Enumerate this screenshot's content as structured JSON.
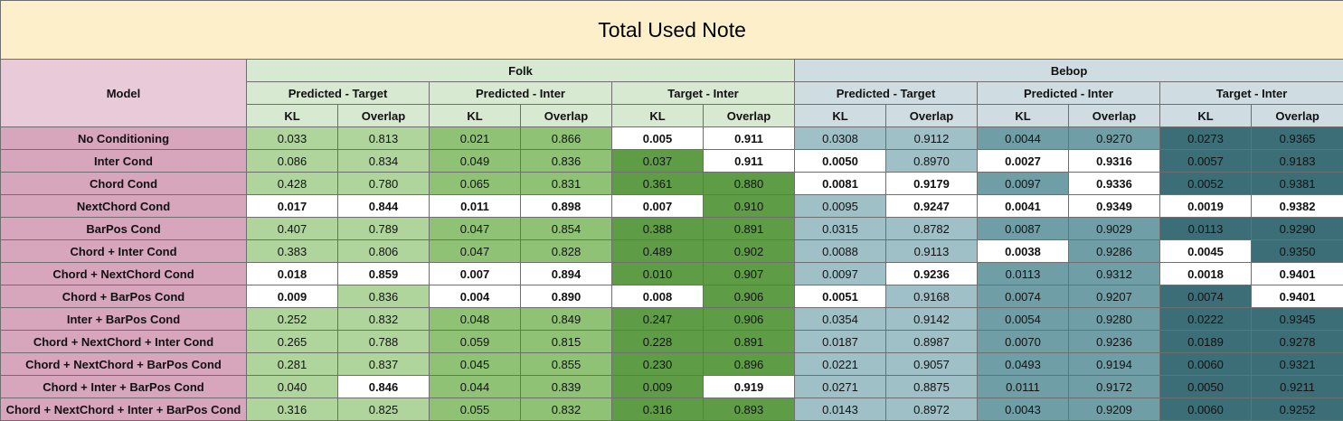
{
  "title": "Total Used Note",
  "model_header": "Model",
  "groups": [
    {
      "name": "Folk",
      "pairs": [
        "Predicted - Target",
        "Predicted - Inter",
        "Target - Inter"
      ]
    },
    {
      "name": "Bebop",
      "pairs": [
        "Predicted - Target",
        "Predicted - Inter",
        "Target - Inter"
      ]
    }
  ],
  "metrics": [
    "KL",
    "Overlap"
  ],
  "colors": {
    "title_bg": "#fdefc9",
    "model_bg": "#d7a6bd",
    "folk_header_bg": "#d8e9d1",
    "bebop_header_bg": "#cfdde2",
    "folk_shades": [
      "#afd59c",
      "#8fc275",
      "#5e9d46"
    ],
    "bebop_shades": [
      "#a0c0c7",
      "#6f9ea6",
      "#3c6e78"
    ],
    "highlight": "#ffffff"
  },
  "rows": [
    {
      "model": "No Conditioning",
      "values": [
        "0.033",
        "0.813",
        "0.021",
        "0.866",
        "0.005",
        "0.911",
        "0.0308",
        "0.9112",
        "0.0044",
        "0.9270",
        "0.0273",
        "0.9365"
      ],
      "bold": [
        4,
        5
      ]
    },
    {
      "model": "Inter Cond",
      "values": [
        "0.086",
        "0.834",
        "0.049",
        "0.836",
        "0.037",
        "0.911",
        "0.0050",
        "0.8970",
        "0.0027",
        "0.9316",
        "0.0057",
        "0.9183"
      ],
      "bold": [
        5,
        6,
        8,
        9
      ]
    },
    {
      "model": "Chord Cond",
      "values": [
        "0.428",
        "0.780",
        "0.065",
        "0.831",
        "0.361",
        "0.880",
        "0.0081",
        "0.9179",
        "0.0097",
        "0.9336",
        "0.0052",
        "0.9381"
      ],
      "bold": [
        6,
        7,
        9
      ]
    },
    {
      "model": "NextChord Cond",
      "values": [
        "0.017",
        "0.844",
        "0.011",
        "0.898",
        "0.007",
        "0.910",
        "0.0095",
        "0.9247",
        "0.0041",
        "0.9349",
        "0.0019",
        "0.9382"
      ],
      "bold": [
        0,
        1,
        2,
        3,
        4,
        7,
        8,
        9,
        10,
        11
      ]
    },
    {
      "model": "BarPos Cond",
      "values": [
        "0.407",
        "0.789",
        "0.047",
        "0.854",
        "0.388",
        "0.891",
        "0.0315",
        "0.8782",
        "0.0087",
        "0.9029",
        "0.0113",
        "0.9290"
      ],
      "bold": []
    },
    {
      "model": "Chord + Inter Cond",
      "values": [
        "0.383",
        "0.806",
        "0.047",
        "0.828",
        "0.489",
        "0.902",
        "0.0088",
        "0.9113",
        "0.0038",
        "0.9286",
        "0.0045",
        "0.9350"
      ],
      "bold": [
        8,
        10
      ]
    },
    {
      "model": "Chord + NextChord Cond",
      "values": [
        "0.018",
        "0.859",
        "0.007",
        "0.894",
        "0.010",
        "0.907",
        "0.0097",
        "0.9236",
        "0.0113",
        "0.9312",
        "0.0018",
        "0.9401"
      ],
      "bold": [
        0,
        1,
        2,
        3,
        7,
        10,
        11
      ]
    },
    {
      "model": "Chord + BarPos Cond",
      "values": [
        "0.009",
        "0.836",
        "0.004",
        "0.890",
        "0.008",
        "0.906",
        "0.0051",
        "0.9168",
        "0.0074",
        "0.9207",
        "0.0074",
        "0.9401"
      ],
      "bold": [
        0,
        2,
        3,
        4,
        6,
        11
      ]
    },
    {
      "model": "Inter + BarPos Cond",
      "values": [
        "0.252",
        "0.832",
        "0.048",
        "0.849",
        "0.247",
        "0.906",
        "0.0354",
        "0.9142",
        "0.0054",
        "0.9280",
        "0.0222",
        "0.9345"
      ],
      "bold": []
    },
    {
      "model": "Chord + NextChord + Inter Cond",
      "values": [
        "0.265",
        "0.788",
        "0.059",
        "0.815",
        "0.228",
        "0.891",
        "0.0187",
        "0.8987",
        "0.0070",
        "0.9236",
        "0.0189",
        "0.9278"
      ],
      "bold": []
    },
    {
      "model": "Chord + NextChord + BarPos Cond",
      "values": [
        "0.281",
        "0.837",
        "0.045",
        "0.855",
        "0.230",
        "0.896",
        "0.0221",
        "0.9057",
        "0.0493",
        "0.9194",
        "0.0060",
        "0.9321"
      ],
      "bold": []
    },
    {
      "model": "Chord + Inter + BarPos Cond",
      "values": [
        "0.040",
        "0.846",
        "0.044",
        "0.839",
        "0.009",
        "0.919",
        "0.0271",
        "0.8875",
        "0.0111",
        "0.9172",
        "0.0050",
        "0.9211"
      ],
      "bold": [
        1,
        5
      ]
    },
    {
      "model": "Chord + NextChord + Inter + BarPos Cond",
      "values": [
        "0.316",
        "0.825",
        "0.055",
        "0.832",
        "0.316",
        "0.893",
        "0.0143",
        "0.8972",
        "0.0043",
        "0.9209",
        "0.0060",
        "0.9252"
      ],
      "bold": []
    }
  ]
}
